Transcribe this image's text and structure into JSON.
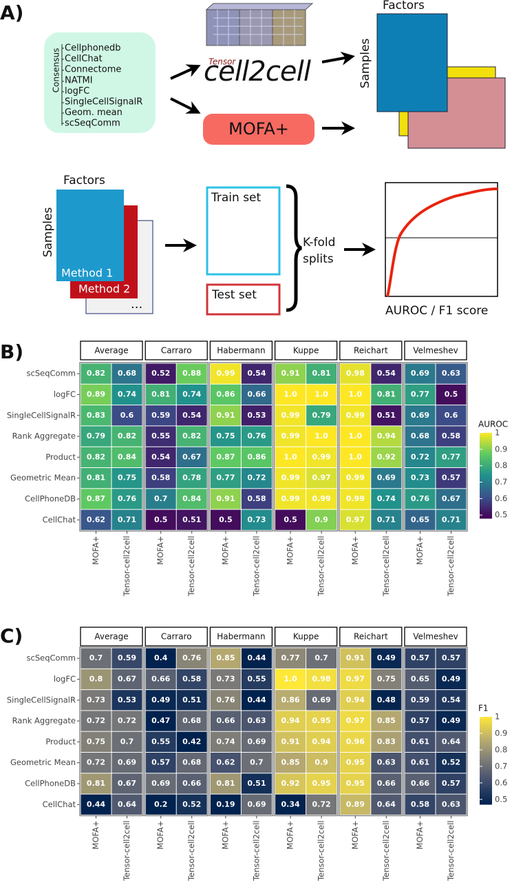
{
  "panel_labels": [
    "A)",
    "B)",
    "C)"
  ],
  "diagram": {
    "consensus_label": "Consensus",
    "methods": [
      "Cellphonedb",
      "CellChat",
      "Connectome",
      "NATMI",
      "logFC",
      "SingleCellSignalR",
      "Geom. mean",
      "scSeqComm"
    ],
    "tensor_label": "Tensor",
    "cell2cell_label": "cell2cell",
    "mofa_label": "MOFA+",
    "factors_top": "Factors",
    "samples_top": "Samples",
    "factors_bottom": "Factors",
    "samples_bottom": "Samples",
    "method1": "Method 1",
    "method2": "Method 2",
    "more": "...",
    "train": "Train set",
    "test": "Test set",
    "kfold": [
      "K-fold",
      "splits"
    ],
    "metric": "AUROC / F1 score"
  },
  "chart_data": [
    {
      "type": "heatmap",
      "legend_title": "AUROC",
      "colormap": "viridis",
      "clim": [
        0.48,
        1
      ],
      "cticks": [
        1,
        0.9,
        0.8,
        0.7,
        0.6,
        0.5
      ],
      "rows": [
        "scSeqComm",
        "logFC",
        "SingleCellSignalR",
        "Rank Aggregate",
        "Product",
        "Geometric Mean",
        "CellPhoneDB",
        "CellChat"
      ],
      "columns": [
        "MOFA+",
        "Tensor-cell2cell"
      ],
      "series": [
        {
          "name": "Average",
          "values": [
            [
              0.82,
              0.68
            ],
            [
              0.89,
              0.74
            ],
            [
              0.83,
              0.6
            ],
            [
              0.79,
              0.82
            ],
            [
              0.82,
              0.84
            ],
            [
              0.81,
              0.75
            ],
            [
              0.87,
              0.76
            ],
            [
              0.62,
              0.71
            ]
          ]
        },
        {
          "name": "Carraro",
          "values": [
            [
              0.52,
              0.88
            ],
            [
              0.81,
              0.74
            ],
            [
              0.59,
              0.54
            ],
            [
              0.55,
              0.82
            ],
            [
              0.54,
              0.67
            ],
            [
              0.58,
              0.78
            ],
            [
              0.7,
              0.84
            ],
            [
              0.5,
              0.51
            ]
          ]
        },
        {
          "name": "Habermann",
          "values": [
            [
              0.99,
              0.54
            ],
            [
              0.86,
              0.66
            ],
            [
              0.91,
              0.53
            ],
            [
              0.75,
              0.76
            ],
            [
              0.87,
              0.86
            ],
            [
              0.77,
              0.72
            ],
            [
              0.91,
              0.58
            ],
            [
              0.5,
              0.73
            ]
          ]
        },
        {
          "name": "Kuppe",
          "values": [
            [
              0.91,
              0.81
            ],
            [
              1,
              1
            ],
            [
              0.99,
              0.79
            ],
            [
              0.99,
              1
            ],
            [
              1,
              0.99
            ],
            [
              0.99,
              0.97
            ],
            [
              0.99,
              0.99
            ],
            [
              0.5,
              0.9
            ]
          ],
          "value_labels": [
            [
              "0.91",
              "0.81"
            ],
            [
              "1.0",
              "1.0"
            ],
            [
              "0.99",
              "0.79"
            ],
            [
              "0.99",
              "1.0"
            ],
            [
              "1.0",
              "0.99"
            ],
            [
              "0.99",
              "0.97"
            ],
            [
              "0.99",
              "0.99"
            ],
            [
              "0.5",
              "0.9"
            ]
          ]
        },
        {
          "name": "Reichart",
          "values": [
            [
              0.98,
              0.54
            ],
            [
              1,
              0.81
            ],
            [
              0.99,
              0.51
            ],
            [
              1,
              0.94
            ],
            [
              1,
              0.92
            ],
            [
              0.99,
              0.69
            ],
            [
              0.99,
              0.74
            ],
            [
              0.97,
              0.71
            ]
          ],
          "value_labels": [
            [
              "0.98",
              "0.54"
            ],
            [
              "1.0",
              "0.81"
            ],
            [
              "0.99",
              "0.51"
            ],
            [
              "1.0",
              "0.94"
            ],
            [
              "1.0",
              "0.92"
            ],
            [
              "0.99",
              "0.69"
            ],
            [
              "0.99",
              "0.74"
            ],
            [
              "0.97",
              "0.71"
            ]
          ]
        },
        {
          "name": "Velmeshev",
          "values": [
            [
              0.69,
              0.63
            ],
            [
              0.77,
              0.5
            ],
            [
              0.69,
              0.6
            ],
            [
              0.68,
              0.58
            ],
            [
              0.72,
              0.77
            ],
            [
              0.73,
              0.57
            ],
            [
              0.76,
              0.67
            ],
            [
              0.65,
              0.71
            ]
          ]
        }
      ]
    },
    {
      "type": "heatmap",
      "legend_title": "F1",
      "colormap": "cividis",
      "clim": [
        0.47,
        1
      ],
      "cticks": [
        1,
        0.9,
        0.8,
        0.7,
        0.6,
        0.5
      ],
      "rows": [
        "scSeqComm",
        "logFC",
        "SingleCellSignalR",
        "Rank Aggregate",
        "Product",
        "Geometric Mean",
        "CellPhoneDB",
        "CellChat"
      ],
      "columns": [
        "MOFA+",
        "Tensor-cell2cell"
      ],
      "series": [
        {
          "name": "Average",
          "values": [
            [
              0.7,
              0.59
            ],
            [
              0.8,
              0.67
            ],
            [
              0.73,
              0.53
            ],
            [
              0.72,
              0.72
            ],
            [
              0.75,
              0.7
            ],
            [
              0.72,
              0.69
            ],
            [
              0.81,
              0.67
            ],
            [
              0.44,
              0.64
            ]
          ]
        },
        {
          "name": "Carraro",
          "values": [
            [
              0.4,
              0.76
            ],
            [
              0.66,
              0.58
            ],
            [
              0.49,
              0.51
            ],
            [
              0.47,
              0.68
            ],
            [
              0.55,
              0.42
            ],
            [
              0.57,
              0.68
            ],
            [
              0.69,
              0.66
            ],
            [
              0.2,
              0.52
            ]
          ]
        },
        {
          "name": "Habermann",
          "values": [
            [
              0.85,
              0.44
            ],
            [
              0.73,
              0.55
            ],
            [
              0.76,
              0.44
            ],
            [
              0.66,
              0.63
            ],
            [
              0.74,
              0.69
            ],
            [
              0.62,
              0.7
            ],
            [
              0.81,
              0.51
            ],
            [
              0.19,
              0.69
            ]
          ]
        },
        {
          "name": "Kuppe",
          "values": [
            [
              0.77,
              0.7
            ],
            [
              1,
              0.98
            ],
            [
              0.86,
              0.69
            ],
            [
              0.94,
              0.95
            ],
            [
              0.91,
              0.94
            ],
            [
              0.85,
              0.9
            ],
            [
              0.92,
              0.95
            ],
            [
              0.34,
              0.72
            ]
          ],
          "value_labels": [
            [
              "0.77",
              "0.7"
            ],
            [
              "1.0",
              "0.98"
            ],
            [
              "0.86",
              "0.69"
            ],
            [
              "0.94",
              "0.95"
            ],
            [
              "0.91",
              "0.94"
            ],
            [
              "0.85",
              "0.9"
            ],
            [
              "0.92",
              "0.95"
            ],
            [
              "0.34",
              "0.72"
            ]
          ]
        },
        {
          "name": "Reichart",
          "values": [
            [
              0.91,
              0.49
            ],
            [
              0.97,
              0.75
            ],
            [
              0.94,
              0.48
            ],
            [
              0.97,
              0.85
            ],
            [
              0.96,
              0.83
            ],
            [
              0.95,
              0.63
            ],
            [
              0.95,
              0.66
            ],
            [
              0.89,
              0.64
            ]
          ]
        },
        {
          "name": "Velmeshev",
          "values": [
            [
              0.57,
              0.57
            ],
            [
              0.65,
              0.49
            ],
            [
              0.59,
              0.54
            ],
            [
              0.57,
              0.49
            ],
            [
              0.61,
              0.64
            ],
            [
              0.61,
              0.52
            ],
            [
              0.66,
              0.57
            ],
            [
              0.58,
              0.63
            ]
          ]
        }
      ]
    }
  ]
}
